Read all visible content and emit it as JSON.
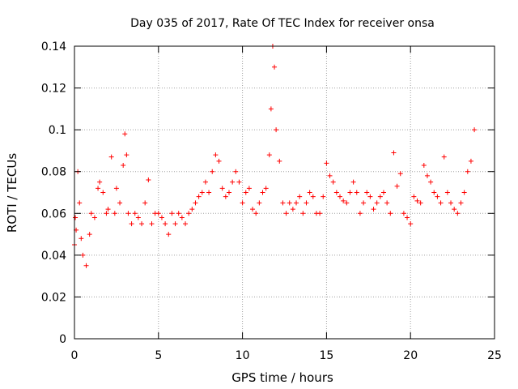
{
  "chart_data": {
    "type": "scatter",
    "title": "Day 035 of 2017, Rate Of TEC Index for receiver onsa",
    "xlabel": "GPS time / hours",
    "ylabel": "ROTI / TECUs",
    "xlim": [
      0,
      25
    ],
    "ylim": [
      0,
      0.14
    ],
    "xticks": [
      "0",
      "5",
      "10",
      "15",
      "20",
      "25"
    ],
    "yticks": [
      "0",
      "0.02",
      "0.04",
      "0.06",
      "0.08",
      "0.1",
      "0.12",
      "0.14"
    ],
    "grid": true,
    "marker": "+",
    "color": "#ff0000",
    "series": [
      {
        "name": "",
        "x": [
          0.0,
          0.05,
          0.1,
          0.2,
          0.3,
          0.4,
          0.5,
          0.7,
          0.9,
          1.0,
          1.2,
          1.4,
          1.5,
          1.7,
          1.9,
          2.0,
          2.2,
          2.4,
          2.5,
          2.7,
          2.9,
          3.0,
          3.1,
          3.2,
          3.4,
          3.6,
          3.8,
          4.0,
          4.2,
          4.4,
          4.6,
          4.8,
          5.0,
          5.2,
          5.4,
          5.6,
          5.8,
          6.0,
          6.2,
          6.4,
          6.6,
          6.8,
          7.0,
          7.2,
          7.4,
          7.6,
          7.8,
          8.0,
          8.2,
          8.4,
          8.6,
          8.8,
          9.0,
          9.2,
          9.4,
          9.6,
          9.8,
          10.0,
          10.2,
          10.4,
          10.6,
          10.8,
          11.0,
          11.2,
          11.4,
          11.6,
          11.7,
          11.8,
          11.9,
          12.0,
          12.2,
          12.4,
          12.6,
          12.8,
          13.0,
          13.2,
          13.4,
          13.6,
          13.8,
          14.0,
          14.2,
          14.4,
          14.6,
          14.8,
          15.0,
          15.2,
          15.4,
          15.6,
          15.8,
          16.0,
          16.2,
          16.4,
          16.6,
          16.8,
          17.0,
          17.2,
          17.4,
          17.6,
          17.8,
          18.0,
          18.2,
          18.4,
          18.6,
          18.8,
          19.0,
          19.2,
          19.4,
          19.6,
          19.8,
          20.0,
          20.2,
          20.4,
          20.6,
          20.8,
          21.0,
          21.2,
          21.4,
          21.6,
          21.8,
          22.0,
          22.2,
          22.4,
          22.6,
          22.8,
          23.0,
          23.2,
          23.4,
          23.6,
          23.8
        ],
        "y": [
          0.045,
          0.058,
          0.052,
          0.08,
          0.065,
          0.048,
          0.04,
          0.035,
          0.05,
          0.06,
          0.058,
          0.072,
          0.075,
          0.07,
          0.06,
          0.062,
          0.087,
          0.06,
          0.072,
          0.065,
          0.083,
          0.098,
          0.088,
          0.06,
          0.055,
          0.06,
          0.058,
          0.055,
          0.065,
          0.076,
          0.055,
          0.06,
          0.06,
          0.058,
          0.055,
          0.05,
          0.06,
          0.055,
          0.06,
          0.058,
          0.055,
          0.06,
          0.062,
          0.065,
          0.068,
          0.07,
          0.075,
          0.07,
          0.08,
          0.088,
          0.085,
          0.072,
          0.068,
          0.07,
          0.075,
          0.08,
          0.075,
          0.065,
          0.07,
          0.072,
          0.062,
          0.06,
          0.065,
          0.07,
          0.072,
          0.088,
          0.11,
          0.14,
          0.13,
          0.1,
          0.085,
          0.065,
          0.06,
          0.065,
          0.062,
          0.065,
          0.068,
          0.06,
          0.065,
          0.07,
          0.068,
          0.06,
          0.06,
          0.068,
          0.084,
          0.078,
          0.075,
          0.07,
          0.068,
          0.066,
          0.065,
          0.07,
          0.075,
          0.07,
          0.06,
          0.065,
          0.07,
          0.068,
          0.062,
          0.065,
          0.068,
          0.07,
          0.065,
          0.06,
          0.089,
          0.073,
          0.079,
          0.06,
          0.058,
          0.055,
          0.068,
          0.066,
          0.065,
          0.083,
          0.078,
          0.075,
          0.07,
          0.068,
          0.065,
          0.087,
          0.07,
          0.065,
          0.062,
          0.06,
          0.065,
          0.07,
          0.08,
          0.085,
          0.1
        ]
      }
    ]
  }
}
